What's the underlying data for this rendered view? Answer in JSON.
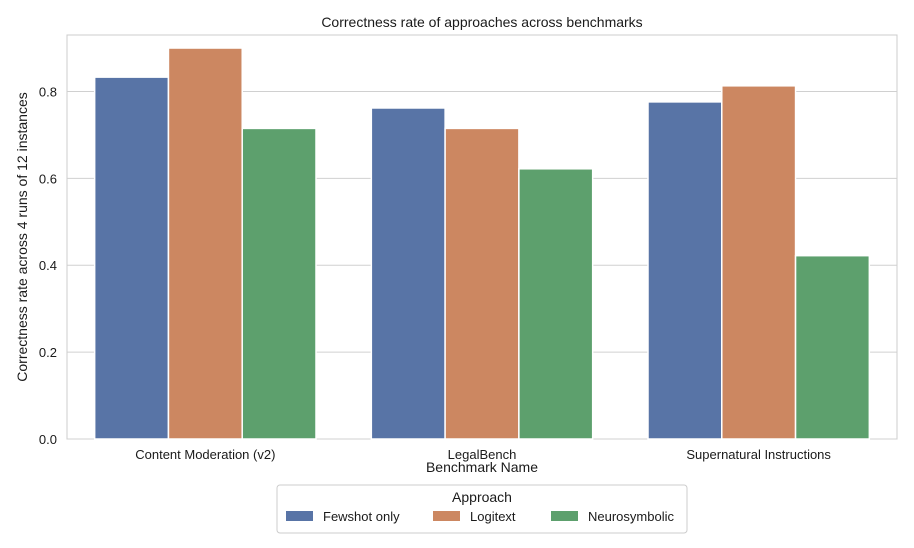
{
  "chart_data": {
    "type": "bar",
    "title": "Correctness rate of approaches across benchmarks",
    "xlabel": "Benchmark Name",
    "ylabel": "Correctness rate across 4 runs of 12 instances",
    "categories": [
      "Content Moderation (v2)",
      "LegalBench",
      "Supernatural Instructions"
    ],
    "series": [
      {
        "name": "Fewshot only",
        "color": "#5874a6",
        "values": [
          0.833,
          0.762,
          0.776
        ]
      },
      {
        "name": "Logitext",
        "color": "#cc8761",
        "values": [
          0.9,
          0.715,
          0.813
        ]
      },
      {
        "name": "Neurosymbolic",
        "color": "#5da06d",
        "values": [
          0.715,
          0.622,
          0.422
        ]
      }
    ],
    "ylim": [
      0,
      0.93
    ],
    "yticks": [
      0.0,
      0.2,
      0.4,
      0.6,
      0.8
    ],
    "ytick_labels": [
      "0.0",
      "0.2",
      "0.4",
      "0.6",
      "0.8"
    ],
    "grid": "horizontal",
    "legend": {
      "title": "Approach",
      "placement": "bottom-center"
    }
  }
}
